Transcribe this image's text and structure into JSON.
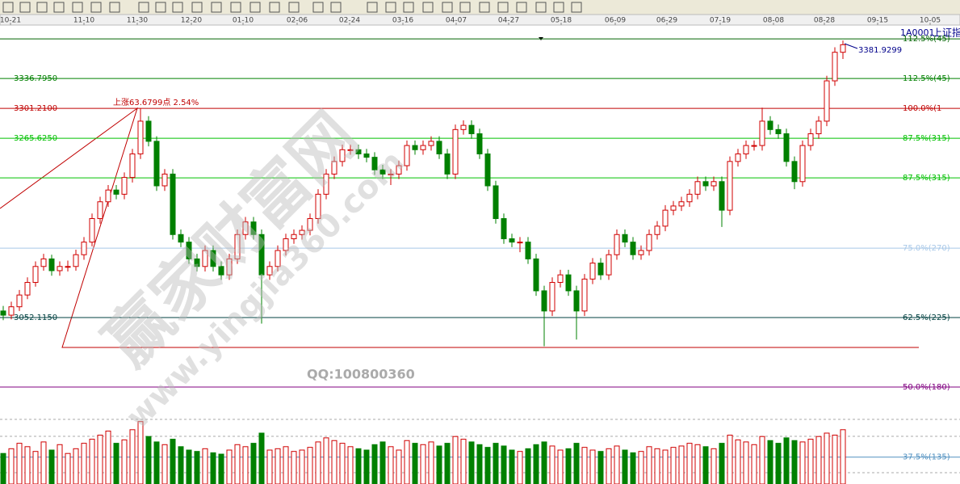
{
  "chart_data": {
    "type": "candlestick",
    "symbol": "1A0001",
    "name": "上证指数",
    "annotation": "上涨63.6799点 2.54%",
    "last_high_label": "3381.9299",
    "watermark": [
      "赢家财富网",
      "www.yingjia360.com",
      "QQ:100800360"
    ],
    "xlim": [
      -0.4,
      118.5
    ],
    "ylim": [
      2854,
      3411
    ],
    "vlim": [
      0,
      100
    ],
    "xticks": [
      {
        "value": 0.9,
        "label": "10-21"
      },
      {
        "value": 10,
        "label": "11-10"
      },
      {
        "value": 16.6,
        "label": "11-30"
      },
      {
        "value": 23.3,
        "label": "12-20"
      },
      {
        "value": 29.7,
        "label": "01-10"
      },
      {
        "value": 36.4,
        "label": "02-06"
      },
      {
        "value": 42.9,
        "label": "02-24"
      },
      {
        "value": 49.5,
        "label": "03-16"
      },
      {
        "value": 56.1,
        "label": "04-07"
      },
      {
        "value": 62.6,
        "label": "04-27"
      },
      {
        "value": 69.1,
        "label": "05-18"
      },
      {
        "value": 75.8,
        "label": "06-09"
      },
      {
        "value": 82.2,
        "label": "06-29"
      },
      {
        "value": 88.8,
        "label": "07-19"
      },
      {
        "value": 95.4,
        "label": "08-08"
      },
      {
        "value": 101.7,
        "label": "08-28"
      },
      {
        "value": 108.3,
        "label": "09-15"
      },
      {
        "value": 114.8,
        "label": "10-05"
      }
    ],
    "levels": [
      {
        "value": 3383.9,
        "pct": "112.5%(45)",
        "color": "#006400"
      },
      {
        "value": 3336.795,
        "label": "3336.7950",
        "pct": "112.5%(45)",
        "color": "#008000"
      },
      {
        "value": 3301.21,
        "label": "3301.2100",
        "pct": "100.0%(1",
        "color": "#c00000"
      },
      {
        "value": 3265.625,
        "label": "3265.6250",
        "pct": "87.5%(315)",
        "color": "#00c000"
      },
      {
        "value": 3218.5,
        "pct": "87.5%(315)",
        "color": "#00c000"
      },
      {
        "value": 3134.8,
        "pct": "75.0%(270)",
        "color": "#a8c8e8"
      },
      {
        "value": 3052.115,
        "label": "3052.1150",
        "pct": "62.5%(225)",
        "color": "#004040"
      },
      {
        "value": 2969.4,
        "pct": "50.0%(180)",
        "color": "#800080"
      },
      {
        "value": 2886,
        "pct": "37.5%(135)",
        "color": "#5090c0"
      }
    ],
    "up_color": "#d00000",
    "down_color": "#008000",
    "ohlc": [
      [
        3060,
        3066,
        3049,
        3055
      ],
      [
        3055,
        3071,
        3050,
        3065
      ],
      [
        3065,
        3085,
        3060,
        3079
      ],
      [
        3079,
        3100,
        3074,
        3094
      ],
      [
        3094,
        3119,
        3089,
        3113
      ],
      [
        3113,
        3128,
        3108,
        3122
      ],
      [
        3122,
        3127,
        3102,
        3108
      ],
      [
        3108,
        3119,
        3102,
        3113
      ],
      [
        3113,
        3120,
        3107,
        3113
      ],
      [
        3113,
        3133,
        3108,
        3127
      ],
      [
        3127,
        3148,
        3121,
        3142
      ],
      [
        3142,
        3176,
        3137,
        3170
      ],
      [
        3170,
        3196,
        3164,
        3190
      ],
      [
        3190,
        3210,
        3184,
        3204
      ],
      [
        3204,
        3210,
        3193,
        3199
      ],
      [
        3199,
        3225,
        3193,
        3219
      ],
      [
        3219,
        3253,
        3213,
        3247
      ],
      [
        3247,
        3301,
        3241,
        3286
      ],
      [
        3286,
        3292,
        3256,
        3262
      ],
      [
        3262,
        3268,
        3203,
        3209
      ],
      [
        3209,
        3229,
        3203,
        3223
      ],
      [
        3223,
        3229,
        3145,
        3151
      ],
      [
        3151,
        3157,
        3136,
        3142
      ],
      [
        3142,
        3148,
        3116,
        3122
      ],
      [
        3122,
        3128,
        3107,
        3113
      ],
      [
        3113,
        3138,
        3107,
        3132
      ],
      [
        3132,
        3138,
        3107,
        3113
      ],
      [
        3113,
        3119,
        3097,
        3103
      ],
      [
        3103,
        3128,
        3097,
        3122
      ],
      [
        3122,
        3157,
        3116,
        3151
      ],
      [
        3151,
        3172,
        3145,
        3166
      ],
      [
        3166,
        3172,
        3145,
        3151
      ],
      [
        3151,
        3157,
        3045,
        3103
      ],
      [
        3103,
        3119,
        3097,
        3113
      ],
      [
        3113,
        3138,
        3107,
        3132
      ],
      [
        3132,
        3152,
        3126,
        3146
      ],
      [
        3146,
        3157,
        3140,
        3151
      ],
      [
        3151,
        3162,
        3145,
        3156
      ],
      [
        3156,
        3176,
        3150,
        3170
      ],
      [
        3170,
        3205,
        3164,
        3199
      ],
      [
        3199,
        3229,
        3193,
        3223
      ],
      [
        3223,
        3244,
        3217,
        3238
      ],
      [
        3238,
        3258,
        3232,
        3252
      ],
      [
        3252,
        3258,
        3246,
        3252
      ],
      [
        3252,
        3258,
        3241,
        3247
      ],
      [
        3247,
        3253,
        3237,
        3243
      ],
      [
        3243,
        3249,
        3222,
        3228
      ],
      [
        3228,
        3234,
        3217,
        3223
      ],
      [
        3223,
        3229,
        3210,
        3223
      ],
      [
        3223,
        3239,
        3217,
        3233
      ],
      [
        3233,
        3263,
        3227,
        3257
      ],
      [
        3257,
        3263,
        3246,
        3252
      ],
      [
        3252,
        3263,
        3246,
        3257
      ],
      [
        3257,
        3268,
        3251,
        3262
      ],
      [
        3262,
        3268,
        3241,
        3247
      ],
      [
        3247,
        3253,
        3217,
        3223
      ],
      [
        3223,
        3282,
        3217,
        3276
      ],
      [
        3276,
        3287,
        3270,
        3281
      ],
      [
        3281,
        3287,
        3265,
        3271
      ],
      [
        3271,
        3277,
        3241,
        3247
      ],
      [
        3247,
        3253,
        3203,
        3209
      ],
      [
        3209,
        3215,
        3164,
        3170
      ],
      [
        3170,
        3176,
        3140,
        3146
      ],
      [
        3146,
        3152,
        3136,
        3142
      ],
      [
        3142,
        3148,
        3130,
        3142
      ],
      [
        3142,
        3148,
        3116,
        3122
      ],
      [
        3122,
        3128,
        3078,
        3084
      ],
      [
        3084,
        3090,
        3018,
        3060
      ],
      [
        3060,
        3100,
        3054,
        3094
      ],
      [
        3094,
        3109,
        3088,
        3103
      ],
      [
        3103,
        3109,
        3078,
        3084
      ],
      [
        3084,
        3090,
        3026,
        3060
      ],
      [
        3060,
        3104,
        3054,
        3098
      ],
      [
        3098,
        3123,
        3092,
        3117
      ],
      [
        3117,
        3123,
        3097,
        3103
      ],
      [
        3103,
        3133,
        3097,
        3127
      ],
      [
        3127,
        3157,
        3121,
        3151
      ],
      [
        3151,
        3157,
        3136,
        3142
      ],
      [
        3142,
        3148,
        3121,
        3127
      ],
      [
        3127,
        3138,
        3121,
        3132
      ],
      [
        3132,
        3157,
        3126,
        3151
      ],
      [
        3151,
        3167,
        3145,
        3161
      ],
      [
        3161,
        3186,
        3155,
        3180
      ],
      [
        3180,
        3191,
        3174,
        3185
      ],
      [
        3185,
        3196,
        3179,
        3190
      ],
      [
        3190,
        3205,
        3184,
        3199
      ],
      [
        3199,
        3220,
        3193,
        3214
      ],
      [
        3214,
        3220,
        3203,
        3209
      ],
      [
        3209,
        3220,
        3203,
        3214
      ],
      [
        3214,
        3220,
        3160,
        3180
      ],
      [
        3180,
        3244,
        3174,
        3238
      ],
      [
        3238,
        3253,
        3232,
        3247
      ],
      [
        3247,
        3263,
        3241,
        3257
      ],
      [
        3257,
        3263,
        3251,
        3257
      ],
      [
        3257,
        3302,
        3251,
        3286
      ],
      [
        3286,
        3292,
        3270,
        3276
      ],
      [
        3276,
        3282,
        3265,
        3271
      ],
      [
        3271,
        3277,
        3232,
        3238
      ],
      [
        3238,
        3244,
        3205,
        3214
      ],
      [
        3214,
        3263,
        3208,
        3257
      ],
      [
        3257,
        3277,
        3251,
        3271
      ],
      [
        3271,
        3292,
        3265,
        3286
      ],
      [
        3286,
        3340,
        3280,
        3334
      ],
      [
        3334,
        3374,
        3328,
        3368
      ],
      [
        3368,
        3382,
        3360,
        3377
      ]
    ],
    "volume": [
      45,
      52,
      60,
      55,
      48,
      62,
      50,
      58,
      45,
      52,
      60,
      66,
      72,
      78,
      60,
      65,
      80,
      92,
      70,
      62,
      58,
      66,
      55,
      50,
      48,
      52,
      46,
      44,
      50,
      58,
      55,
      60,
      75,
      50,
      52,
      55,
      48,
      50,
      54,
      62,
      68,
      64,
      60,
      55,
      52,
      50,
      58,
      62,
      55,
      50,
      64,
      60,
      58,
      62,
      56,
      60,
      70,
      66,
      62,
      58,
      54,
      60,
      56,
      50,
      48,
      52,
      58,
      62,
      56,
      50,
      52,
      60,
      54,
      50,
      48,
      52,
      56,
      50,
      46,
      48,
      55,
      52,
      50,
      54,
      56,
      60,
      58,
      55,
      52,
      60,
      72,
      65,
      62,
      58,
      70,
      64,
      60,
      68,
      64,
      62,
      66,
      70,
      75,
      72,
      80
    ]
  }
}
